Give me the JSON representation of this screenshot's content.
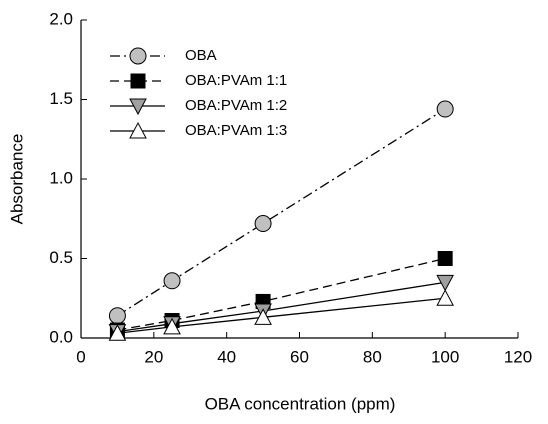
{
  "chart_data": {
    "type": "line",
    "x_label": "OBA concentration (ppm)",
    "y_label": "Absorbance",
    "x": [
      10,
      25,
      50,
      100
    ],
    "series": [
      {
        "name": "OBA",
        "color": "#c0c0c0",
        "line": "dashdot",
        "marker": "circle",
        "values": [
          0.14,
          0.36,
          0.72,
          1.44
        ]
      },
      {
        "name": "OBA:PVAm 1:1",
        "color": "#000000",
        "line": "dashed",
        "marker": "square",
        "values": [
          0.05,
          0.11,
          0.23,
          0.5
        ]
      },
      {
        "name": "OBA:PVAm 1:2",
        "color": "#a0a0a0",
        "line": "solid",
        "marker": "triangle-down",
        "values": [
          0.04,
          0.09,
          0.17,
          0.35
        ]
      },
      {
        "name": "OBA:PVAm 1:3",
        "color": "#ffffff",
        "line": "solid",
        "marker": "triangle-up",
        "values": [
          0.03,
          0.07,
          0.13,
          0.25
        ]
      }
    ],
    "xlim": [
      0,
      120
    ],
    "xticks": [
      0,
      20,
      40,
      60,
      80,
      100,
      120
    ],
    "ylim": [
      0,
      2.0
    ],
    "yticks": [
      {
        "value": 0,
        "label": "0.0"
      },
      0.5,
      {
        "value": 1,
        "label": "1.0"
      },
      1.5,
      {
        "value": 2,
        "label": "2.0"
      }
    ],
    "legend": "upper left",
    "grid": false
  }
}
